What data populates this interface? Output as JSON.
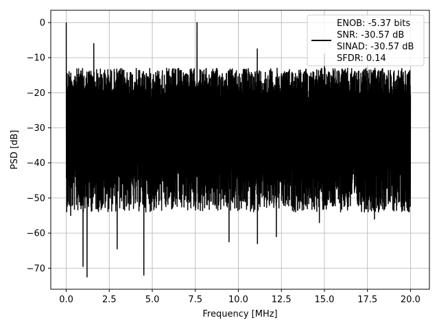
{
  "chart_data": {
    "type": "line",
    "title": "",
    "xlabel": "Frequency [MHz]",
    "ylabel": "PSD [dB]",
    "xlim": [
      -0.9,
      21.1
    ],
    "ylim": [
      -76,
      3.5
    ],
    "xticks": [
      0.0,
      2.5,
      5.0,
      7.5,
      10.0,
      12.5,
      15.0,
      17.5,
      20.0
    ],
    "xtick_labels": [
      "0.0",
      "2.5",
      "5.0",
      "7.5",
      "10.0",
      "12.5",
      "15.0",
      "17.5",
      "20.0"
    ],
    "yticks": [
      0,
      -10,
      -20,
      -30,
      -40,
      -50,
      -60,
      -70
    ],
    "ytick_labels": [
      "0",
      "−10",
      "−20",
      "−30",
      "−40",
      "−50",
      "−60",
      "−70"
    ],
    "grid": true,
    "legend_position": "top-right",
    "legend_lines": [
      "ENOB: -5.37 bits",
      "SNR: -30.57 dB",
      "SINAD: -30.57 dB",
      "SFDR: 0.14"
    ],
    "series": [
      {
        "color": "#000000",
        "frequency_range": [
          0.0,
          20.0
        ],
        "noise_floor_band": [
          -48,
          -13
        ],
        "peaks": [
          {
            "x": 0.0,
            "y": 0.0
          },
          {
            "x": 1.6,
            "y": -6.0
          },
          {
            "x": 7.6,
            "y": 0.0
          },
          {
            "x": 11.1,
            "y": -7.5
          },
          {
            "x": 15.0,
            "y": -9.0
          }
        ],
        "dips": [
          {
            "x": 0.25,
            "y": -55.0
          },
          {
            "x": 0.97,
            "y": -69.5
          },
          {
            "x": 1.2,
            "y": -72.5
          },
          {
            "x": 2.95,
            "y": -64.5
          },
          {
            "x": 4.5,
            "y": -72.0
          },
          {
            "x": 9.45,
            "y": -62.5
          },
          {
            "x": 11.1,
            "y": -63.0
          },
          {
            "x": 12.2,
            "y": -61.0
          },
          {
            "x": 14.7,
            "y": -57.0
          },
          {
            "x": 17.9,
            "y": -56.0
          }
        ]
      }
    ]
  }
}
